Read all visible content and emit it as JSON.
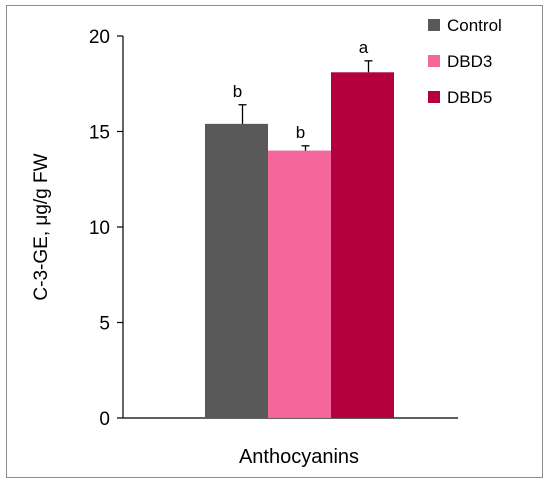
{
  "chart_data": {
    "type": "bar",
    "categories": [
      "Anthocyanins"
    ],
    "ylabel": "C-3-GE, μg/g FW",
    "xlabel": "",
    "ylim": [
      0,
      20
    ],
    "yticks": [
      0,
      5,
      10,
      15,
      20
    ],
    "legend_position": "top-right",
    "series": [
      {
        "name": "Control",
        "color": "#595959",
        "values": [
          15.4
        ],
        "error": [
          1.0
        ],
        "sig": "b"
      },
      {
        "name": "DBD3",
        "color": "#f4679a",
        "values": [
          14.0
        ],
        "error": [
          0.25
        ],
        "sig": "b"
      },
      {
        "name": "DBD5",
        "color": "#b5003e",
        "values": [
          18.1
        ],
        "error": [
          0.6
        ],
        "sig": "a"
      }
    ]
  }
}
